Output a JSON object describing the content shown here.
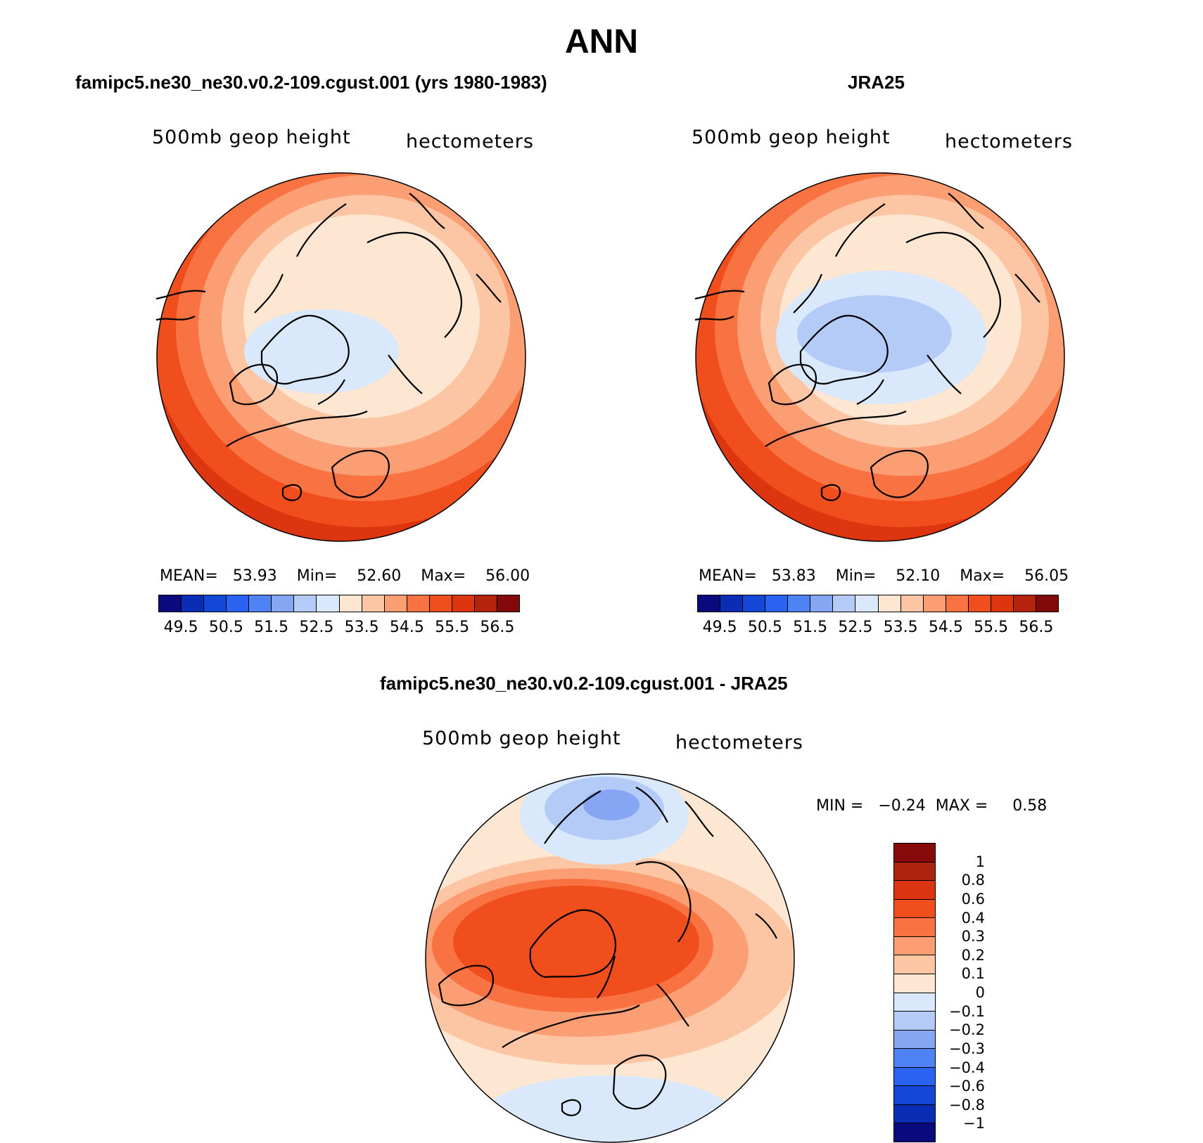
{
  "main_title": "ANN",
  "panels": [
    {
      "title": "famipc5.ne30_ne30.v0.2-109.cgust.001 (yrs 1980-1983)",
      "variable": "500mb geop height",
      "units": "hectometers",
      "stats": {
        "mean_label": "MEAN=",
        "mean": "53.93",
        "min_label": "Min=",
        "min": "52.60",
        "max_label": "Max=",
        "max": "56.00"
      }
    },
    {
      "title": "JRA25",
      "variable": "500mb geop height",
      "units": "hectometers",
      "stats": {
        "mean_label": "MEAN=",
        "mean": "53.83",
        "min_label": "Min=",
        "min": "52.10",
        "max_label": "Max=",
        "max": "56.05"
      }
    },
    {
      "title": "famipc5.ne30_ne30.v0.2-109.cgust.001 - JRA25",
      "variable": "500mb geop height",
      "units": "hectometers",
      "stats": {
        "min_label": "MIN =",
        "min": "−0.24",
        "max_label": "MAX =",
        "max": "0.58"
      }
    }
  ],
  "colorbar_top": {
    "colors": [
      "#0a0a7e",
      "#0b2cb5",
      "#1347d6",
      "#2a62f2",
      "#4f83f4",
      "#86a6f4",
      "#b4cbf7",
      "#d9e8fb",
      "#fde6d2",
      "#fcc6a4",
      "#fb9e74",
      "#f97342",
      "#f04e1c",
      "#dd3510",
      "#b3230e",
      "#830a0a"
    ],
    "labels": [
      "49.5",
      "50.5",
      "51.5",
      "52.5",
      "53.5",
      "54.5",
      "55.5",
      "56.5"
    ]
  },
  "colorbar_diff": {
    "colors": [
      "#870a0a",
      "#ad230e",
      "#dc3512",
      "#f04e1c",
      "#f97342",
      "#fb9e74",
      "#fcc6a4",
      "#fde6d2",
      "#d9e8fb",
      "#b4cbf7",
      "#86a6f4",
      "#4f83f4",
      "#2a62f2",
      "#1347d6",
      "#0b2cb5",
      "#0a0a7e"
    ],
    "labels": [
      "1",
      "0.8",
      "0.6",
      "0.4",
      "0.3",
      "0.2",
      "0.1",
      "0",
      "−0.1",
      "−0.2",
      "−0.3",
      "−0.4",
      "−0.6",
      "−0.8",
      "−1"
    ]
  }
}
